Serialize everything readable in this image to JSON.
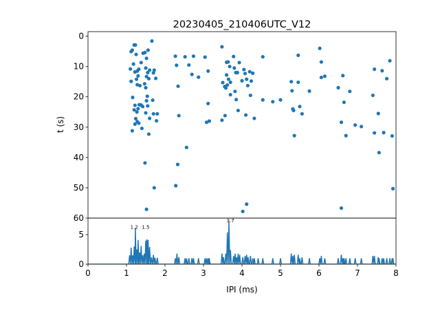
{
  "chart_data": [
    {
      "type": "scatter",
      "title": "20230405_210406UTC_V12",
      "ylabel": "t (s)",
      "xlim": [
        0,
        8
      ],
      "ylim": [
        60,
        -1.5
      ],
      "y_inverted": true,
      "yticks": [
        "0",
        "10",
        "20",
        "30",
        "40",
        "50",
        "60"
      ],
      "yticks_values": [
        0,
        10,
        20,
        30,
        40,
        50,
        60
      ],
      "color": "#1f77b4",
      "points": [
        [
          1.12,
          5.1
        ],
        [
          1.15,
          4.6
        ],
        [
          1.2,
          2.9
        ],
        [
          1.23,
          2.9
        ],
        [
          1.25,
          6.0
        ],
        [
          1.1,
          10.8
        ],
        [
          1.18,
          9.2
        ],
        [
          1.28,
          11.5
        ],
        [
          1.32,
          10.9
        ],
        [
          1.22,
          11.8
        ],
        [
          1.12,
          14.9
        ],
        [
          1.26,
          14.2
        ],
        [
          1.3,
          13.1
        ],
        [
          1.35,
          16.3
        ],
        [
          1.28,
          16.0
        ],
        [
          1.16,
          20.2
        ],
        [
          1.22,
          22.8
        ],
        [
          1.3,
          23.9
        ],
        [
          1.27,
          25.0
        ],
        [
          1.2,
          24.3
        ],
        [
          1.33,
          22.6
        ],
        [
          1.38,
          22.7
        ],
        [
          1.42,
          23.2
        ],
        [
          1.24,
          27.2
        ],
        [
          1.28,
          28.2
        ],
        [
          1.32,
          28.7
        ],
        [
          1.22,
          29.0
        ],
        [
          1.15,
          31.2
        ],
        [
          1.4,
          30.4
        ],
        [
          1.38,
          8.7
        ],
        [
          1.43,
          5.6
        ],
        [
          1.48,
          5.4
        ],
        [
          1.52,
          7.3
        ],
        [
          1.56,
          4.6
        ],
        [
          1.5,
          10.5
        ],
        [
          1.55,
          12.0
        ],
        [
          1.6,
          11.2
        ],
        [
          1.52,
          13.3
        ],
        [
          1.58,
          14.0
        ],
        [
          1.47,
          15.7
        ],
        [
          1.5,
          17.0
        ],
        [
          1.54,
          19.8
        ],
        [
          1.52,
          21.3
        ],
        [
          1.55,
          23.0
        ],
        [
          1.5,
          25.3
        ],
        [
          1.6,
          27.1
        ],
        [
          1.58,
          32.3
        ],
        [
          1.48,
          41.8
        ],
        [
          1.52,
          57.1
        ],
        [
          1.66,
          1.6
        ],
        [
          1.7,
          12.1
        ],
        [
          1.72,
          11.2
        ],
        [
          1.76,
          13.9
        ],
        [
          1.68,
          21.1
        ],
        [
          1.7,
          25.6
        ],
        [
          1.8,
          25.6
        ],
        [
          1.78,
          27.9
        ],
        [
          1.72,
          50.0
        ],
        [
          2.27,
          6.6
        ],
        [
          2.3,
          9.6
        ],
        [
          2.34,
          16.5
        ],
        [
          2.36,
          26.2
        ],
        [
          2.33,
          42.3
        ],
        [
          2.28,
          49.3
        ],
        [
          2.56,
          36.7
        ],
        [
          2.52,
          6.8
        ],
        [
          2.62,
          9.5
        ],
        [
          2.7,
          12.6
        ],
        [
          2.74,
          6.6
        ],
        [
          2.87,
          13.5
        ],
        [
          3.04,
          6.9
        ],
        [
          3.08,
          28.4
        ],
        [
          3.15,
          28.0
        ],
        [
          3.12,
          22.2
        ],
        [
          3.12,
          11.5
        ],
        [
          3.48,
          3.5
        ],
        [
          3.48,
          27.7
        ],
        [
          3.5,
          15.3
        ],
        [
          3.55,
          16.6
        ],
        [
          3.6,
          8.6
        ],
        [
          3.64,
          8.5
        ],
        [
          3.6,
          12.8
        ],
        [
          3.62,
          16.1
        ],
        [
          3.58,
          17.1
        ],
        [
          3.68,
          10.0
        ],
        [
          3.7,
          15.2
        ],
        [
          3.7,
          19.3
        ],
        [
          3.65,
          14.2
        ],
        [
          3.56,
          26.2
        ],
        [
          3.78,
          6.7
        ],
        [
          3.8,
          10.5
        ],
        [
          3.84,
          12.0
        ],
        [
          3.82,
          18.2
        ],
        [
          3.88,
          12.0
        ],
        [
          3.9,
          24.5
        ],
        [
          3.85,
          20.9
        ],
        [
          3.93,
          8.7
        ],
        [
          4.0,
          14.7
        ],
        [
          4.05,
          11.0
        ],
        [
          4.08,
          12.3
        ],
        [
          4.12,
          14.2
        ],
        [
          4.15,
          16.3
        ],
        [
          4.1,
          26.0
        ],
        [
          4.2,
          11.7
        ],
        [
          4.22,
          19.5
        ],
        [
          4.24,
          14.8
        ],
        [
          4.28,
          12.2
        ],
        [
          4.32,
          27.1
        ],
        [
          4.02,
          57.8
        ],
        [
          4.12,
          55.4
        ],
        [
          4.54,
          6.8
        ],
        [
          4.54,
          21.0
        ],
        [
          4.8,
          21.6
        ],
        [
          5.0,
          21.0
        ],
        [
          5.28,
          15.0
        ],
        [
          5.3,
          18.0
        ],
        [
          5.32,
          24.0
        ],
        [
          5.34,
          24.5
        ],
        [
          5.36,
          32.8
        ],
        [
          5.46,
          15.2
        ],
        [
          5.46,
          6.3
        ],
        [
          5.56,
          25.6
        ],
        [
          5.5,
          23.2
        ],
        [
          5.75,
          18.1
        ],
        [
          6.02,
          4.0
        ],
        [
          6.06,
          8.5
        ],
        [
          6.06,
          13.6
        ],
        [
          6.15,
          13.2
        ],
        [
          6.5,
          17.0
        ],
        [
          6.58,
          28.4
        ],
        [
          6.62,
          13.0
        ],
        [
          6.65,
          21.8
        ],
        [
          6.7,
          32.8
        ],
        [
          6.8,
          18.2
        ],
        [
          6.94,
          29.3
        ],
        [
          7.1,
          29.8
        ],
        [
          7.4,
          19.5
        ],
        [
          7.44,
          10.9
        ],
        [
          7.44,
          31.9
        ],
        [
          7.54,
          25.5
        ],
        [
          7.56,
          38.4
        ],
        [
          7.64,
          11.4
        ],
        [
          7.68,
          31.8
        ],
        [
          7.76,
          14.0
        ],
        [
          7.84,
          8.1
        ],
        [
          7.9,
          32.9
        ],
        [
          7.92,
          50.3
        ],
        [
          6.58,
          56.7
        ]
      ]
    },
    {
      "type": "line",
      "xlabel": "IPI (ms)",
      "xlim": [
        0,
        8
      ],
      "ylim": [
        0,
        7.8
      ],
      "xticks": [
        "0",
        "1",
        "2",
        "3",
        "4",
        "5",
        "6",
        "7",
        "8"
      ],
      "xticks_values": [
        0,
        1,
        2,
        3,
        4,
        5,
        6,
        7,
        8
      ],
      "yticks": [
        "0",
        "5"
      ],
      "yticks_values": [
        0,
        5
      ],
      "color": "#1f77b4",
      "peak_labels": [
        {
          "text": "1.2",
          "x": 1.2,
          "y": 6.1
        },
        {
          "text": "1.5",
          "x": 1.5,
          "y": 6.1
        },
        {
          "text": "3.7",
          "x": 3.7,
          "y": 7.2
        }
      ],
      "peaks": [
        [
          1.08,
          1.5
        ],
        [
          1.12,
          2.8
        ],
        [
          1.16,
          1.5
        ],
        [
          1.2,
          3.0
        ],
        [
          1.23,
          6.1
        ],
        [
          1.27,
          2.5
        ],
        [
          1.3,
          4.1
        ],
        [
          1.34,
          2.0
        ],
        [
          1.38,
          3.1
        ],
        [
          1.42,
          1.5
        ],
        [
          1.46,
          1.8
        ],
        [
          1.5,
          4.0
        ],
        [
          1.53,
          4.2
        ],
        [
          1.56,
          4.1
        ],
        [
          1.6,
          2.9
        ],
        [
          1.65,
          1.2
        ],
        [
          1.7,
          1.6
        ],
        [
          1.74,
          1.1
        ],
        [
          1.8,
          1.1
        ],
        [
          2.27,
          1.0
        ],
        [
          2.31,
          1.8
        ],
        [
          2.36,
          1.2
        ],
        [
          2.52,
          1.0
        ],
        [
          2.56,
          1.0
        ],
        [
          2.62,
          1.0
        ],
        [
          2.7,
          1.0
        ],
        [
          2.74,
          1.0
        ],
        [
          2.87,
          1.0
        ],
        [
          3.04,
          1.0
        ],
        [
          3.08,
          1.0
        ],
        [
          3.12,
          1.0
        ],
        [
          3.15,
          1.0
        ],
        [
          3.48,
          1.8
        ],
        [
          3.52,
          1.2
        ],
        [
          3.58,
          1.8
        ],
        [
          3.62,
          5.4
        ],
        [
          3.66,
          7.2
        ],
        [
          3.7,
          2.4
        ],
        [
          3.78,
          1.4
        ],
        [
          3.82,
          1.8
        ],
        [
          3.86,
          1.2
        ],
        [
          3.9,
          1.8
        ],
        [
          3.94,
          1.6
        ],
        [
          4.02,
          1.2
        ],
        [
          4.08,
          1.4
        ],
        [
          4.12,
          1.6
        ],
        [
          4.16,
          1.2
        ],
        [
          4.22,
          1.4
        ],
        [
          4.28,
          1.0
        ],
        [
          4.32,
          1.0
        ],
        [
          4.42,
          1.0
        ],
        [
          4.54,
          1.0
        ],
        [
          4.8,
          1.0
        ],
        [
          5.0,
          1.0
        ],
        [
          5.28,
          1.8
        ],
        [
          5.32,
          1.4
        ],
        [
          5.36,
          1.6
        ],
        [
          5.46,
          1.6
        ],
        [
          5.5,
          1.0
        ],
        [
          5.56,
          1.2
        ],
        [
          5.75,
          1.0
        ],
        [
          6.02,
          1.0
        ],
        [
          6.06,
          1.4
        ],
        [
          6.15,
          1.0
        ],
        [
          6.5,
          1.0
        ],
        [
          6.58,
          1.6
        ],
        [
          6.62,
          1.0
        ],
        [
          6.65,
          1.0
        ],
        [
          6.7,
          1.0
        ],
        [
          6.8,
          1.0
        ],
        [
          6.94,
          1.0
        ],
        [
          7.1,
          1.0
        ],
        [
          7.4,
          1.4
        ],
        [
          7.44,
          1.4
        ],
        [
          7.54,
          1.2
        ],
        [
          7.56,
          1.0
        ],
        [
          7.64,
          1.0
        ],
        [
          7.68,
          1.0
        ],
        [
          7.76,
          1.0
        ],
        [
          7.84,
          1.0
        ],
        [
          7.9,
          1.0
        ],
        [
          7.92,
          1.0
        ]
      ]
    }
  ]
}
